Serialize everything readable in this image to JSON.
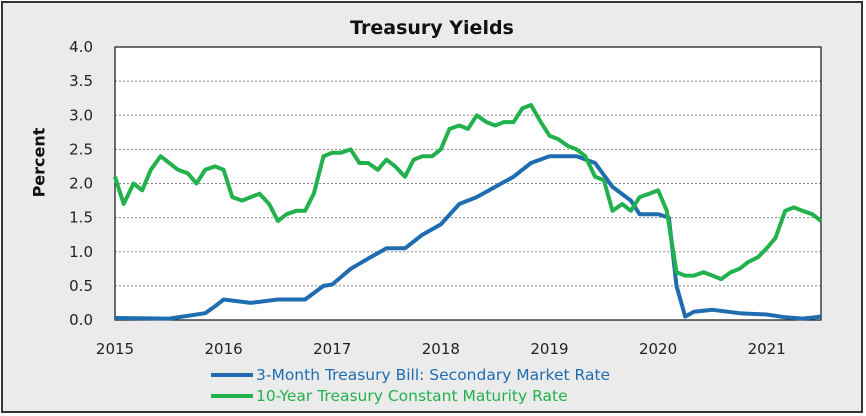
{
  "chart_data": {
    "type": "line",
    "title": "Treasury Yields",
    "xlabel": "",
    "ylabel": "Percent",
    "xlim": [
      2015,
      2021.5
    ],
    "ylim": [
      0,
      4
    ],
    "x_ticks": [
      "2015",
      "2016",
      "2017",
      "2018",
      "2019",
      "2020",
      "2021"
    ],
    "y_ticks": [
      "0.0",
      "0.5",
      "1.0",
      "1.5",
      "2.0",
      "2.5",
      "3.0",
      "3.5",
      "4.0"
    ],
    "grid": "horizontal dotted",
    "legend": "bottom",
    "series": [
      {
        "name": "3-Month Treasury Bill: Secondary Market Rate",
        "color": "#1f6db0",
        "x": [
          2015.0,
          2015.5,
          2015.83,
          2015.92,
          2016.0,
          2016.25,
          2016.5,
          2016.75,
          2016.92,
          2017.0,
          2017.17,
          2017.33,
          2017.5,
          2017.67,
          2017.83,
          2018.0,
          2018.17,
          2018.33,
          2018.5,
          2018.67,
          2018.83,
          2019.0,
          2019.25,
          2019.42,
          2019.58,
          2019.75,
          2019.83,
          2020.0,
          2020.1,
          2020.17,
          2020.25,
          2020.33,
          2020.5,
          2020.75,
          2021.0,
          2021.17,
          2021.33,
          2021.5
        ],
        "y": [
          0.03,
          0.02,
          0.1,
          0.2,
          0.3,
          0.25,
          0.3,
          0.3,
          0.5,
          0.52,
          0.75,
          0.9,
          1.05,
          1.05,
          1.25,
          1.4,
          1.7,
          1.8,
          1.95,
          2.1,
          2.3,
          2.4,
          2.4,
          2.3,
          1.95,
          1.75,
          1.55,
          1.55,
          1.5,
          0.5,
          0.05,
          0.12,
          0.15,
          0.1,
          0.08,
          0.04,
          0.02,
          0.05
        ]
      },
      {
        "name": "10-Year Treasury Constant Maturity Rate",
        "color": "#22b14c",
        "x": [
          2015.0,
          2015.08,
          2015.17,
          2015.25,
          2015.33,
          2015.42,
          2015.5,
          2015.58,
          2015.67,
          2015.75,
          2015.83,
          2015.92,
          2016.0,
          2016.08,
          2016.17,
          2016.25,
          2016.33,
          2016.42,
          2016.5,
          2016.58,
          2016.67,
          2016.75,
          2016.83,
          2016.92,
          2017.0,
          2017.08,
          2017.17,
          2017.25,
          2017.33,
          2017.42,
          2017.5,
          2017.58,
          2017.67,
          2017.75,
          2017.83,
          2017.92,
          2018.0,
          2018.08,
          2018.17,
          2018.25,
          2018.33,
          2018.42,
          2018.5,
          2018.58,
          2018.67,
          2018.75,
          2018.83,
          2018.92,
          2019.0,
          2019.08,
          2019.17,
          2019.25,
          2019.33,
          2019.42,
          2019.5,
          2019.58,
          2019.67,
          2019.75,
          2019.83,
          2019.92,
          2020.0,
          2020.08,
          2020.17,
          2020.25,
          2020.33,
          2020.42,
          2020.5,
          2020.58,
          2020.67,
          2020.75,
          2020.83,
          2020.92,
          2021.0,
          2021.08,
          2021.17,
          2021.25,
          2021.33,
          2021.42,
          2021.5
        ],
        "y": [
          2.1,
          1.7,
          2.0,
          1.9,
          2.2,
          2.4,
          2.3,
          2.2,
          2.15,
          2.0,
          2.2,
          2.25,
          2.2,
          1.8,
          1.75,
          1.8,
          1.85,
          1.7,
          1.45,
          1.55,
          1.6,
          1.6,
          1.85,
          2.4,
          2.45,
          2.45,
          2.5,
          2.3,
          2.3,
          2.2,
          2.35,
          2.25,
          2.1,
          2.35,
          2.4,
          2.4,
          2.5,
          2.8,
          2.85,
          2.8,
          3.0,
          2.9,
          2.85,
          2.9,
          2.9,
          3.1,
          3.15,
          2.9,
          2.7,
          2.65,
          2.55,
          2.5,
          2.4,
          2.1,
          2.05,
          1.6,
          1.7,
          1.6,
          1.8,
          1.85,
          1.9,
          1.6,
          0.7,
          0.65,
          0.65,
          0.7,
          0.65,
          0.6,
          0.7,
          0.75,
          0.85,
          0.92,
          1.05,
          1.2,
          1.6,
          1.65,
          1.6,
          1.55,
          1.45
        ]
      }
    ]
  }
}
